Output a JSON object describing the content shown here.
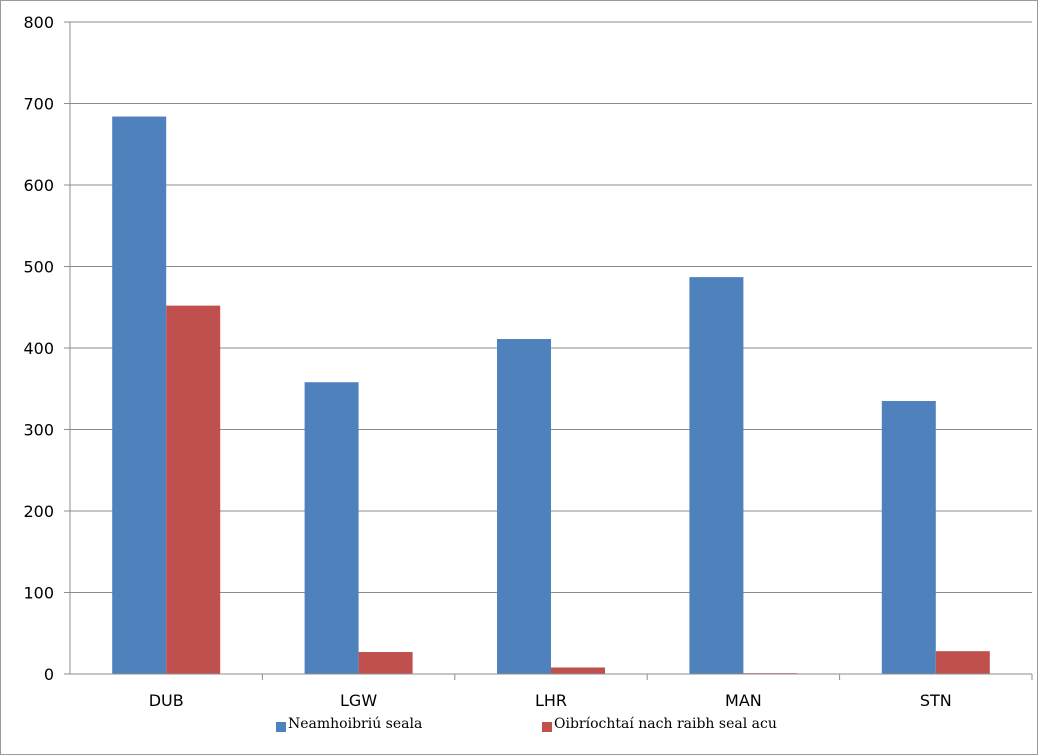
{
  "chart_data": {
    "type": "bar",
    "categories": [
      "DUB",
      "LGW",
      "LHR",
      "MAN",
      "STN"
    ],
    "series": [
      {
        "name": "Neamhoibriú seala",
        "color": "#4f81bd",
        "values": [
          684,
          358,
          411,
          487,
          335
        ]
      },
      {
        "name": "Oibríochtaí nach raibh seal acu",
        "color": "#c0504d",
        "values": [
          452,
          27,
          8,
          1,
          28
        ]
      }
    ],
    "ylim": [
      0,
      800
    ],
    "yticks": [
      0,
      100,
      200,
      300,
      400,
      500,
      600,
      700,
      800
    ],
    "grid": true,
    "legend_position": "bottom"
  }
}
